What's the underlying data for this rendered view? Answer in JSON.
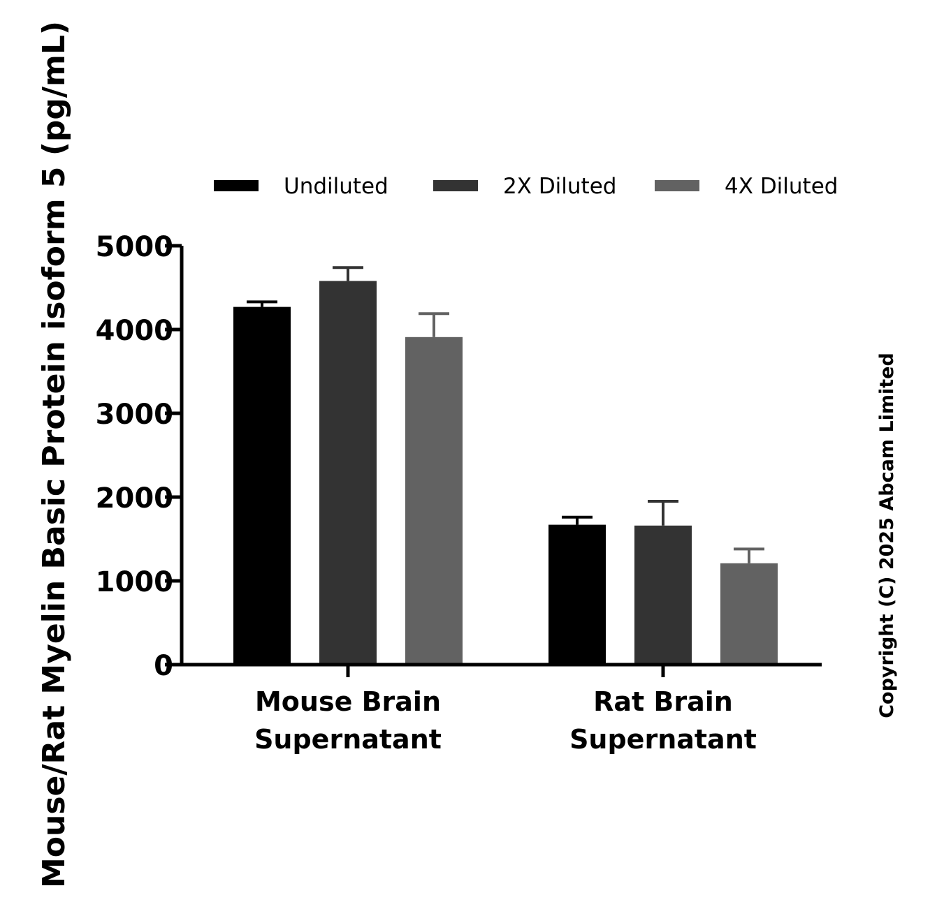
{
  "chart_data": {
    "type": "bar",
    "categories": [
      [
        "Mouse Brain",
        "Supernatant"
      ],
      [
        "Rat Brain",
        "Supernatant"
      ]
    ],
    "series": [
      {
        "name": "Undiluted",
        "color": "#000000",
        "values": [
          4270,
          1670
        ],
        "errors": [
          60,
          90
        ]
      },
      {
        "name": "2X Diluted",
        "color": "#333333",
        "values": [
          4580,
          1660
        ],
        "errors": [
          160,
          290
        ]
      },
      {
        "name": "4X Diluted",
        "color": "#626262",
        "values": [
          3910,
          1210
        ],
        "errors": [
          280,
          170
        ]
      }
    ],
    "ylabel": "Mouse/Rat Myelin Basic Protein isoform 5 (pg/mL)",
    "ylim": [
      0,
      5000
    ],
    "yticks": [
      "0",
      "1000",
      "2000",
      "3000",
      "4000",
      "5000"
    ],
    "legend_position": "top",
    "grid": false
  },
  "copyright": "Copyright (C) 2025 Abcam Limited"
}
